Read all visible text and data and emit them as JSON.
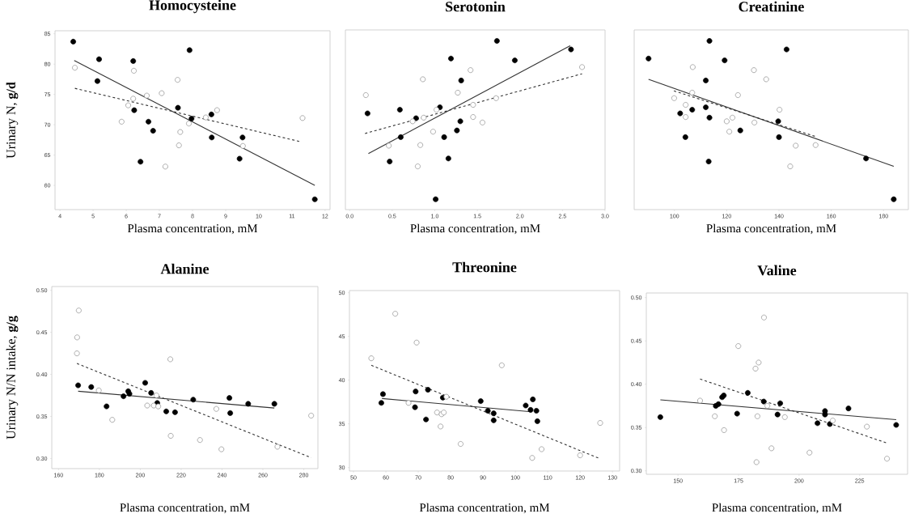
{
  "chart_data": [
    {
      "type": "scatter",
      "title": "Homocysteine",
      "xlabel": "Plasma concentration, mM",
      "ylabel": "Urinary N, **g/d**",
      "xlim": [
        3.85,
        12.15
      ],
      "ylim": [
        56,
        85.5
      ],
      "xticks": [
        4,
        5,
        6,
        7,
        8,
        9,
        10,
        11,
        12
      ],
      "yticks": [
        60,
        65,
        70,
        75,
        80,
        85
      ],
      "grid": false,
      "series": [
        {
          "color": "#000000",
          "marker": "circle",
          "x": [
            4.4,
            5.18,
            5.13,
            6.21,
            6.24,
            6.67,
            6.43,
            6.81,
            7.91,
            7.56,
            7.97,
            8.57,
            8.58,
            9.51,
            9.42,
            11.69
          ],
          "values": [
            83.7,
            80.8,
            77.2,
            80.5,
            72.4,
            70.5,
            63.9,
            69.0,
            82.3,
            72.8,
            71.0,
            71.7,
            67.9,
            67.9,
            64.4,
            57.7
          ]
        },
        {
          "color": "#8c8c8c",
          "marker": "circle",
          "x": [
            4.45,
            6.23,
            6.21,
            6.06,
            6.62,
            5.86,
            7.07,
            7.55,
            7.63,
            7.59,
            7.18,
            7.89,
            8.4,
            8.74,
            9.52,
            11.32
          ],
          "values": [
            79.4,
            78.9,
            74.3,
            73.2,
            74.8,
            70.5,
            75.2,
            77.4,
            68.8,
            66.6,
            63.1,
            70.2,
            71.2,
            72.4,
            66.5,
            71.1
          ]
        },
        {
          "type": "line",
          "color": "#333333",
          "line_style": "solid",
          "marker": "none",
          "x": [
            4.43,
            11.69
          ],
          "values": [
            80.6,
            60.0
          ]
        },
        {
          "type": "line",
          "color": "#333333",
          "line_style": "dashed",
          "marker": "none",
          "x": [
            4.45,
            11.26
          ],
          "values": [
            76.0,
            67.2
          ]
        }
      ]
    },
    {
      "type": "scatter",
      "title": "Serotonin",
      "xlabel": "Plasma concentration, mM",
      "xlim": [
        -0.05,
        3.0
      ],
      "ylim": [
        56,
        85.5
      ],
      "xticks": [
        {
          "value": 0,
          "label": "0.0"
        },
        {
          "value": 0.5,
          "label": "0.5"
        },
        {
          "value": 1,
          "label": "1.0"
        },
        {
          "value": 1.5,
          "label": "1.5"
        },
        {
          "value": 2,
          "label": "2.0"
        },
        {
          "value": 2.5,
          "label": "2.5"
        },
        {
          "value": 3,
          "label": "3.0"
        }
      ],
      "tick_labels": "x",
      "grid": false,
      "series": [
        {
          "color": "#000000",
          "marker": "circle",
          "x": [
            1.73,
            2.6,
            1.19,
            1.94,
            1.31,
            0.21,
            0.59,
            0.78,
            1.06,
            1.3,
            1.26,
            1.11,
            0.6,
            0.47,
            1.16,
            1.01
          ],
          "values": [
            83.7,
            82.3,
            80.8,
            80.5,
            77.2,
            71.8,
            72.4,
            71.0,
            72.8,
            70.5,
            69.0,
            67.9,
            67.9,
            63.9,
            64.4,
            57.7
          ]
        },
        {
          "color": "#8c8c8c",
          "marker": "circle",
          "x": [
            0.19,
            0.86,
            1.42,
            2.73,
            1.27,
            1.72,
            1.02,
            1.45,
            0.87,
            0.74,
            1.45,
            1.56,
            0.98,
            0.46,
            0.83,
            0.8
          ],
          "values": [
            74.8,
            77.4,
            78.9,
            79.4,
            75.2,
            74.3,
            72.4,
            73.2,
            71.1,
            70.5,
            71.2,
            70.3,
            68.8,
            66.5,
            66.6,
            63.1
          ]
        },
        {
          "type": "line",
          "color": "#333333",
          "line_style": "solid",
          "marker": "none",
          "x": [
            0.22,
            2.59
          ],
          "values": [
            65.2,
            82.9
          ]
        },
        {
          "type": "line",
          "color": "#333333",
          "line_style": "dashed",
          "marker": "none",
          "x": [
            0.18,
            2.73
          ],
          "values": [
            68.5,
            78.3
          ]
        }
      ]
    },
    {
      "type": "scatter",
      "title": "Creatinine",
      "xlabel": "Plasma concentration, mM",
      "xlim": [
        84.6,
        189.5
      ],
      "ylim": [
        56,
        85.5
      ],
      "xticks": [
        100,
        120,
        140,
        160,
        180
      ],
      "tick_labels": "x",
      "grid": false,
      "series": [
        {
          "color": "#000000",
          "marker": "circle",
          "x": [
            90.1,
            113.4,
            142.9,
            119.2,
            112.0,
            106.8,
            112.0,
            102.2,
            113.4,
            104.2,
            125.2,
            139.7,
            140.0,
            113.1,
            173.3,
            183.9
          ],
          "values": [
            80.8,
            83.7,
            82.3,
            80.5,
            77.2,
            72.4,
            72.8,
            71.8,
            71.1,
            67.9,
            69.0,
            70.5,
            67.9,
            63.9,
            64.4,
            57.7
          ]
        },
        {
          "color": "#8c8c8c",
          "marker": "circle",
          "x": [
            107.0,
            130.4,
            135.1,
            106.8,
            124.3,
            99.9,
            104.3,
            140.2,
            104.3,
            122.2,
            120.0,
            130.6,
            121.0,
            146.4,
            154.0,
            144.3
          ],
          "values": [
            79.4,
            78.9,
            77.4,
            75.2,
            74.8,
            74.3,
            73.2,
            72.4,
            71.2,
            71.1,
            70.5,
            70.3,
            68.8,
            66.5,
            66.6,
            63.1
          ]
        },
        {
          "type": "line",
          "color": "#333333",
          "line_style": "solid",
          "marker": "none",
          "x": [
            90.1,
            183.9
          ],
          "values": [
            77.4,
            63.1
          ]
        },
        {
          "type": "line",
          "color": "#333333",
          "line_style": "dashed",
          "marker": "none",
          "x": [
            99.8,
            154.0
          ],
          "values": [
            75.5,
            68.0
          ]
        }
      ]
    },
    {
      "type": "scatter",
      "title": "Alanine",
      "xlabel": "Plasma concentration, mM",
      "ylabel": "Urinary N/N intake, **g/g**",
      "xlim": [
        156.7,
        286.9
      ],
      "ylim": [
        0.288,
        0.5045
      ],
      "xticks": [
        160,
        180,
        200,
        220,
        240,
        260,
        280
      ],
      "yticks": [
        {
          "value": 0.3,
          "label": "0.30"
        },
        0.35,
        {
          "value": 0.4,
          "label": "0.40"
        },
        0.45,
        {
          "value": 0.5,
          "label": "0.50"
        }
      ],
      "grid": false,
      "series": [
        {
          "color": "#000000",
          "marker": "circle",
          "x": [
            169.6,
            176.0,
            183.5,
            191.8,
            194.1,
            194.7,
            202.4,
            205.3,
            208.3,
            212.7,
            217.0,
            225.9,
            243.6,
            244.0,
            252.8,
            265.6
          ],
          "values": [
            0.387,
            0.385,
            0.362,
            0.374,
            0.38,
            0.377,
            0.39,
            0.378,
            0.366,
            0.356,
            0.355,
            0.37,
            0.372,
            0.354,
            0.365,
            0.365
          ]
        },
        {
          "color": "#8c8c8c",
          "marker": "circle",
          "x": [
            169.9,
            169.1,
            169.0,
            179.7,
            186.3,
            203.4,
            206.6,
            207.9,
            208.8,
            214.7,
            214.9,
            229.2,
            237.2,
            239.7,
            267.1,
            283.6
          ],
          "values": [
            0.476,
            0.444,
            0.425,
            0.381,
            0.346,
            0.363,
            0.363,
            0.375,
            0.362,
            0.418,
            0.327,
            0.322,
            0.359,
            0.311,
            0.314,
            0.351
          ]
        },
        {
          "type": "line",
          "color": "#333333",
          "line_style": "solid",
          "marker": "none",
          "x": [
            169.6,
            265.6
          ],
          "values": [
            0.38,
            0.36
          ]
        },
        {
          "type": "line",
          "color": "#333333",
          "line_style": "dashed",
          "marker": "none",
          "x": [
            169.0,
            283.6
          ],
          "values": [
            0.413,
            0.301
          ]
        }
      ]
    },
    {
      "type": "scatter",
      "title": "Threonine",
      "xlabel": "Plasma concentration, mM",
      "xlim": [
        48.75,
        132.2
      ],
      "ylim": [
        29.6,
        50.25
      ],
      "xticks": [
        50,
        60,
        70,
        80,
        90,
        100,
        110,
        120,
        130
      ],
      "yticks": [
        30,
        35,
        40,
        45,
        50
      ],
      "grid": false,
      "series": [
        {
          "color": "#000000",
          "marker": "circle",
          "x": [
            58.6,
            59.1,
            69.2,
            69.0,
            73.0,
            72.4,
            77.6,
            89.3,
            91.5,
            93.3,
            93.3,
            103.2,
            105.4,
            104.7,
            106.5,
            106.8
          ],
          "values": [
            37.4,
            38.4,
            38.7,
            36.9,
            38.9,
            35.5,
            38.0,
            37.6,
            36.5,
            36.2,
            35.4,
            37.1,
            37.8,
            36.6,
            36.5,
            35.3
          ]
        },
        {
          "color": "#8c8c8c",
          "marker": "circle",
          "x": [
            55.5,
            62.9,
            69.5,
            67.0,
            75.8,
            77.2,
            77.9,
            78.7,
            76.9,
            83.1,
            95.8,
            105.2,
            108.1,
            120.0,
            126.2
          ],
          "values": [
            42.5,
            47.6,
            44.3,
            37.4,
            36.3,
            36.1,
            36.3,
            38.1,
            34.7,
            32.7,
            41.7,
            31.1,
            32.1,
            31.4,
            35.1
          ]
        },
        {
          "type": "line",
          "color": "#333333",
          "line_style": "solid",
          "marker": "none",
          "x": [
            58.8,
            104.2
          ],
          "values": [
            37.9,
            36.4
          ]
        },
        {
          "type": "line",
          "color": "#333333",
          "line_style": "dashed",
          "marker": "none",
          "x": [
            55.5,
            126.2
          ],
          "values": [
            41.7,
            31.0
          ]
        }
      ]
    },
    {
      "type": "scatter",
      "title": "Valine",
      "xlabel": "Plasma concentration, mM",
      "xlim": [
        136.9,
        244.8
      ],
      "ylim": [
        0.296,
        0.5053
      ],
      "xticks": [
        150,
        175,
        200,
        225
      ],
      "yticks": [
        {
          "value": 0.3,
          "label": "0.30"
        },
        0.35,
        {
          "value": 0.4,
          "label": "0.40"
        },
        0.45,
        {
          "value": 0.5,
          "label": "0.50"
        }
      ],
      "grid": false,
      "series": [
        {
          "color": "#000000",
          "marker": "circle",
          "x": [
            142.7,
            165.6,
            166.7,
            168.2,
            168.9,
            174.4,
            178.8,
            185.4,
            191.1,
            192.2,
            207.6,
            210.7,
            210.7,
            212.7,
            220.4,
            240.1
          ],
          "values": [
            0.362,
            0.375,
            0.377,
            0.385,
            0.387,
            0.366,
            0.39,
            0.38,
            0.365,
            0.378,
            0.355,
            0.369,
            0.365,
            0.354,
            0.372,
            0.353
          ]
        },
        {
          "color": "#8c8c8c",
          "marker": "circle",
          "x": [
            159.1,
            165.2,
            169.0,
            174.9,
            182.0,
            183.3,
            185.5,
            182.8,
            182.4,
            186.9,
            188.6,
            194.1,
            204.3,
            213.9,
            228.0,
            236.3
          ],
          "values": [
            0.381,
            0.363,
            0.347,
            0.444,
            0.418,
            0.425,
            0.477,
            0.363,
            0.31,
            0.375,
            0.326,
            0.362,
            0.321,
            0.358,
            0.351,
            0.314
          ]
        },
        {
          "type": "line",
          "color": "#333333",
          "line_style": "solid",
          "marker": "none",
          "x": [
            142.7,
            240.1
          ],
          "values": [
            0.382,
            0.359
          ]
        },
        {
          "type": "line",
          "color": "#333333",
          "line_style": "dashed",
          "marker": "none",
          "x": [
            159.1,
            236.3
          ],
          "values": [
            0.406,
            0.332
          ]
        }
      ]
    }
  ]
}
